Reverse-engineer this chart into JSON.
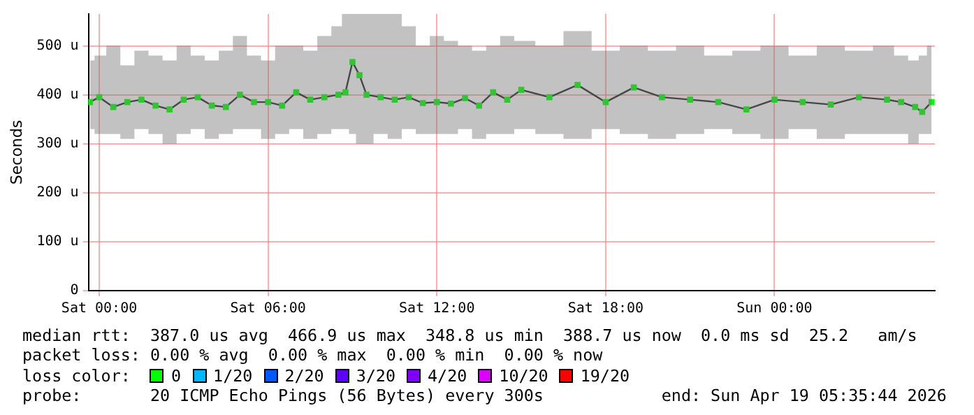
{
  "chart_data": {
    "type": "line",
    "ylabel": "Seconds",
    "legend_title": "loss color:",
    "legend": "bottom",
    "grid": true,
    "marker": "square",
    "line_style": "solid",
    "xlim": [
      "2026-04-17T23:37",
      "2026-04-19T05:42"
    ],
    "xticks": [
      {
        "value": "2026-04-18T00:00",
        "label": "Sat 00:00"
      },
      {
        "value": "2026-04-18T06:00",
        "label": "Sat 06:00"
      },
      {
        "value": "2026-04-18T12:00",
        "label": "Sat 12:00"
      },
      {
        "value": "2026-04-18T18:00",
        "label": "Sat 18:00"
      },
      {
        "value": "2026-04-19T00:00",
        "label": "Sun 00:00"
      }
    ],
    "ylim": [
      0,
      565
    ],
    "yticks": [
      0,
      {
        "value": 100,
        "label": "100 u"
      },
      {
        "value": 200,
        "label": "200 u"
      },
      {
        "value": 300,
        "label": "300 u"
      },
      {
        "value": 400,
        "label": "400 u"
      },
      {
        "value": 500,
        "label": "500 u"
      }
    ],
    "x": [
      "2026-04-17T23:40",
      "2026-04-18T00:00",
      "2026-04-18T00:30",
      "2026-04-18T01:00",
      "2026-04-18T01:30",
      "2026-04-18T02:00",
      "2026-04-18T02:30",
      "2026-04-18T03:00",
      "2026-04-18T03:30",
      "2026-04-18T04:00",
      "2026-04-18T04:30",
      "2026-04-18T05:00",
      "2026-04-18T05:30",
      "2026-04-18T06:00",
      "2026-04-18T06:30",
      "2026-04-18T07:00",
      "2026-04-18T07:30",
      "2026-04-18T08:00",
      "2026-04-18T08:30",
      "2026-04-18T08:45",
      "2026-04-18T09:00",
      "2026-04-18T09:15",
      "2026-04-18T09:30",
      "2026-04-18T10:00",
      "2026-04-18T10:30",
      "2026-04-18T11:00",
      "2026-04-18T11:30",
      "2026-04-18T12:00",
      "2026-04-18T12:30",
      "2026-04-18T13:00",
      "2026-04-18T13:30",
      "2026-04-18T14:00",
      "2026-04-18T14:30",
      "2026-04-18T15:00",
      "2026-04-18T16:00",
      "2026-04-18T17:00",
      "2026-04-18T18:00",
      "2026-04-18T19:00",
      "2026-04-18T20:00",
      "2026-04-18T21:00",
      "2026-04-18T22:00",
      "2026-04-18T23:00",
      "2026-04-19T00:00",
      "2026-04-19T01:00",
      "2026-04-19T02:00",
      "2026-04-19T03:00",
      "2026-04-19T04:00",
      "2026-04-19T04:30",
      "2026-04-19T05:00",
      "2026-04-19T05:15",
      "2026-04-19T05:35"
    ],
    "series": [
      {
        "name": "0",
        "color": "#00ff00",
        "values": [
          385,
          395,
          375,
          385,
          390,
          378,
          370,
          390,
          395,
          378,
          375,
          400,
          385,
          385,
          378,
          405,
          390,
          395,
          400,
          405,
          467,
          440,
          400,
          395,
          390,
          395,
          383,
          385,
          382,
          393,
          378,
          405,
          390,
          410,
          395,
          420,
          385,
          415,
          395,
          390,
          385,
          370,
          390,
          385,
          380,
          395,
          390,
          385,
          375,
          365,
          385
        ],
        "lower": [
          330,
          320,
          320,
          310,
          330,
          320,
          300,
          320,
          330,
          310,
          320,
          330,
          330,
          310,
          320,
          330,
          310,
          320,
          330,
          330,
          320,
          300,
          300,
          320,
          310,
          330,
          320,
          320,
          320,
          330,
          310,
          320,
          320,
          330,
          320,
          310,
          330,
          320,
          310,
          320,
          330,
          320,
          310,
          330,
          310,
          320,
          320,
          320,
          300,
          320,
          320
        ],
        "upper": [
          470,
          480,
          500,
          460,
          490,
          480,
          470,
          500,
          480,
          470,
          490,
          520,
          480,
          470,
          500,
          500,
          490,
          520,
          540,
          565,
          565,
          565,
          565,
          565,
          565,
          540,
          500,
          520,
          510,
          500,
          490,
          500,
          520,
          510,
          500,
          530,
          490,
          500,
          490,
          500,
          480,
          490,
          500,
          480,
          500,
          490,
          500,
          480,
          470,
          480,
          500
        ]
      },
      {
        "name": "1/20",
        "color": "#00b8ff",
        "values": [
          null,
          null,
          null,
          null,
          null,
          null,
          null,
          null,
          null,
          null,
          null,
          null,
          null,
          null,
          null,
          null,
          null,
          null,
          null,
          null,
          null,
          null,
          null,
          null,
          null,
          null,
          null,
          null,
          null,
          null,
          null,
          null,
          null,
          null,
          null,
          null,
          null,
          null,
          null,
          null,
          null,
          null,
          null,
          null,
          null,
          null,
          null,
          null,
          null,
          null,
          null
        ]
      },
      {
        "name": "2/20",
        "color": "#0059ff",
        "values": [
          null,
          null,
          null,
          null,
          null,
          null,
          null,
          null,
          null,
          null,
          null,
          null,
          null,
          null,
          null,
          null,
          null,
          null,
          null,
          null,
          null,
          null,
          null,
          null,
          null,
          null,
          null,
          null,
          null,
          null,
          null,
          null,
          null,
          null,
          null,
          null,
          null,
          null,
          null,
          null,
          null,
          null,
          null,
          null,
          null,
          null,
          null,
          null,
          null,
          null,
          null
        ]
      },
      {
        "name": "3/20",
        "color": "#5e00ff",
        "values": [
          null,
          null,
          null,
          null,
          null,
          null,
          null,
          null,
          null,
          null,
          null,
          null,
          null,
          null,
          null,
          null,
          null,
          null,
          null,
          null,
          null,
          null,
          null,
          null,
          null,
          null,
          null,
          null,
          null,
          null,
          null,
          null,
          null,
          null,
          null,
          null,
          null,
          null,
          null,
          null,
          null,
          null,
          null,
          null,
          null,
          null,
          null,
          null,
          null,
          null,
          null
        ]
      },
      {
        "name": "4/20",
        "color": "#7e00ff",
        "values": [
          null,
          null,
          null,
          null,
          null,
          null,
          null,
          null,
          null,
          null,
          null,
          null,
          null,
          null,
          null,
          null,
          null,
          null,
          null,
          null,
          null,
          null,
          null,
          null,
          null,
          null,
          null,
          null,
          null,
          null,
          null,
          null,
          null,
          null,
          null,
          null,
          null,
          null,
          null,
          null,
          null,
          null,
          null,
          null,
          null,
          null,
          null,
          null,
          null,
          null,
          null
        ]
      },
      {
        "name": "10/20",
        "color": "#dd00ff",
        "values": [
          null,
          null,
          null,
          null,
          null,
          null,
          null,
          null,
          null,
          null,
          null,
          null,
          null,
          null,
          null,
          null,
          null,
          null,
          null,
          null,
          null,
          null,
          null,
          null,
          null,
          null,
          null,
          null,
          null,
          null,
          null,
          null,
          null,
          null,
          null,
          null,
          null,
          null,
          null,
          null,
          null,
          null,
          null,
          null,
          null,
          null,
          null,
          null,
          null,
          null,
          null
        ]
      },
      {
        "name": "19/20",
        "color": "#ff0000",
        "values": [
          null,
          null,
          null,
          null,
          null,
          null,
          null,
          null,
          null,
          null,
          null,
          null,
          null,
          null,
          null,
          null,
          null,
          null,
          null,
          null,
          null,
          null,
          null,
          null,
          null,
          null,
          null,
          null,
          null,
          null,
          null,
          null,
          null,
          null,
          null,
          null,
          null,
          null,
          null,
          null,
          null,
          null,
          null,
          null,
          null,
          null,
          null,
          null,
          null,
          null,
          null
        ]
      }
    ],
    "annotations": [
      "median rtt:  387.0 us avg  466.9 us max  348.8 us min  388.7 us now  0.0 ms sd  25.2   am/s",
      "packet loss: 0.00 % avg  0.00 % max  0.00 % min  0.00 % now",
      "probe:       20 ICMP Echo Pings (56 Bytes) every 300s            end: Sun Apr 19 05:35:44 2026"
    ]
  }
}
